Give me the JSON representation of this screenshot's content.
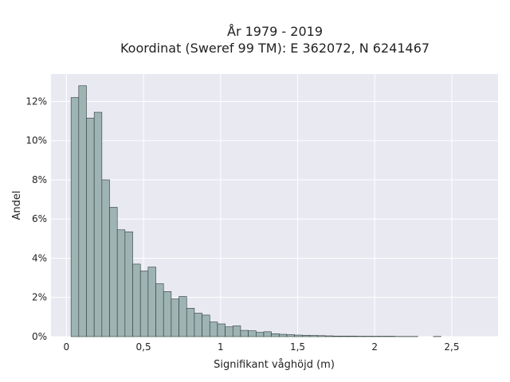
{
  "chart_data": {
    "type": "bar",
    "title": [
      "År 1979 - 2019",
      "Koordinat (Sweref 99 TM): E 362072, N 6241467"
    ],
    "xlabel": "Signifikant våghöjd (m)",
    "ylabel": "Andel",
    "xlim": [
      -0.1,
      2.8
    ],
    "ylim": [
      0,
      13.4
    ],
    "x_ticks": [
      {
        "value": 0,
        "label": "0"
      },
      {
        "value": 0.5,
        "label": "0,5"
      },
      {
        "value": 1,
        "label": "1"
      },
      {
        "value": 1.5,
        "label": "1,5"
      },
      {
        "value": 2,
        "label": "2"
      },
      {
        "value": 2.5,
        "label": "2,5"
      }
    ],
    "y_ticks": [
      {
        "value": 0,
        "label": "0%"
      },
      {
        "value": 2,
        "label": "2%"
      },
      {
        "value": 4,
        "label": "4%"
      },
      {
        "value": 6,
        "label": "6%"
      },
      {
        "value": 8,
        "label": "8%"
      },
      {
        "value": 10,
        "label": "10%"
      },
      {
        "value": 12,
        "label": "12%"
      }
    ],
    "grid": true,
    "bin_width": 0.05,
    "bin_starts": [
      0.03,
      0.08,
      0.13,
      0.18,
      0.23,
      0.28,
      0.33,
      0.38,
      0.43,
      0.48,
      0.53,
      0.58,
      0.63,
      0.68,
      0.73,
      0.78,
      0.83,
      0.88,
      0.93,
      0.98,
      1.03,
      1.08,
      1.13,
      1.18,
      1.23,
      1.28,
      1.33,
      1.38,
      1.43,
      1.48,
      1.53,
      1.58,
      1.63,
      1.68,
      1.73,
      1.78,
      1.83,
      1.88,
      1.93,
      1.98,
      2.03,
      2.08,
      2.13,
      2.18,
      2.23,
      2.28,
      2.33,
      2.38
    ],
    "values": [
      12.2,
      12.8,
      11.15,
      11.45,
      8.0,
      6.6,
      5.45,
      5.35,
      3.7,
      3.35,
      3.55,
      2.7,
      2.3,
      1.92,
      2.05,
      1.45,
      1.2,
      1.1,
      0.75,
      0.65,
      0.5,
      0.55,
      0.32,
      0.3,
      0.22,
      0.25,
      0.15,
      0.12,
      0.1,
      0.08,
      0.07,
      0.06,
      0.05,
      0.04,
      0.03,
      0.03,
      0.03,
      0.02,
      0.02,
      0.02,
      0.02,
      0.02,
      0.01,
      0.01,
      0.01,
      0.0,
      0.0,
      0.01
    ],
    "colors": {
      "bar_fill": "#9db4b3",
      "bar_stroke": "#2f3b3b",
      "plot_bg": "#e9e9f1",
      "grid": "#ffffff"
    }
  }
}
